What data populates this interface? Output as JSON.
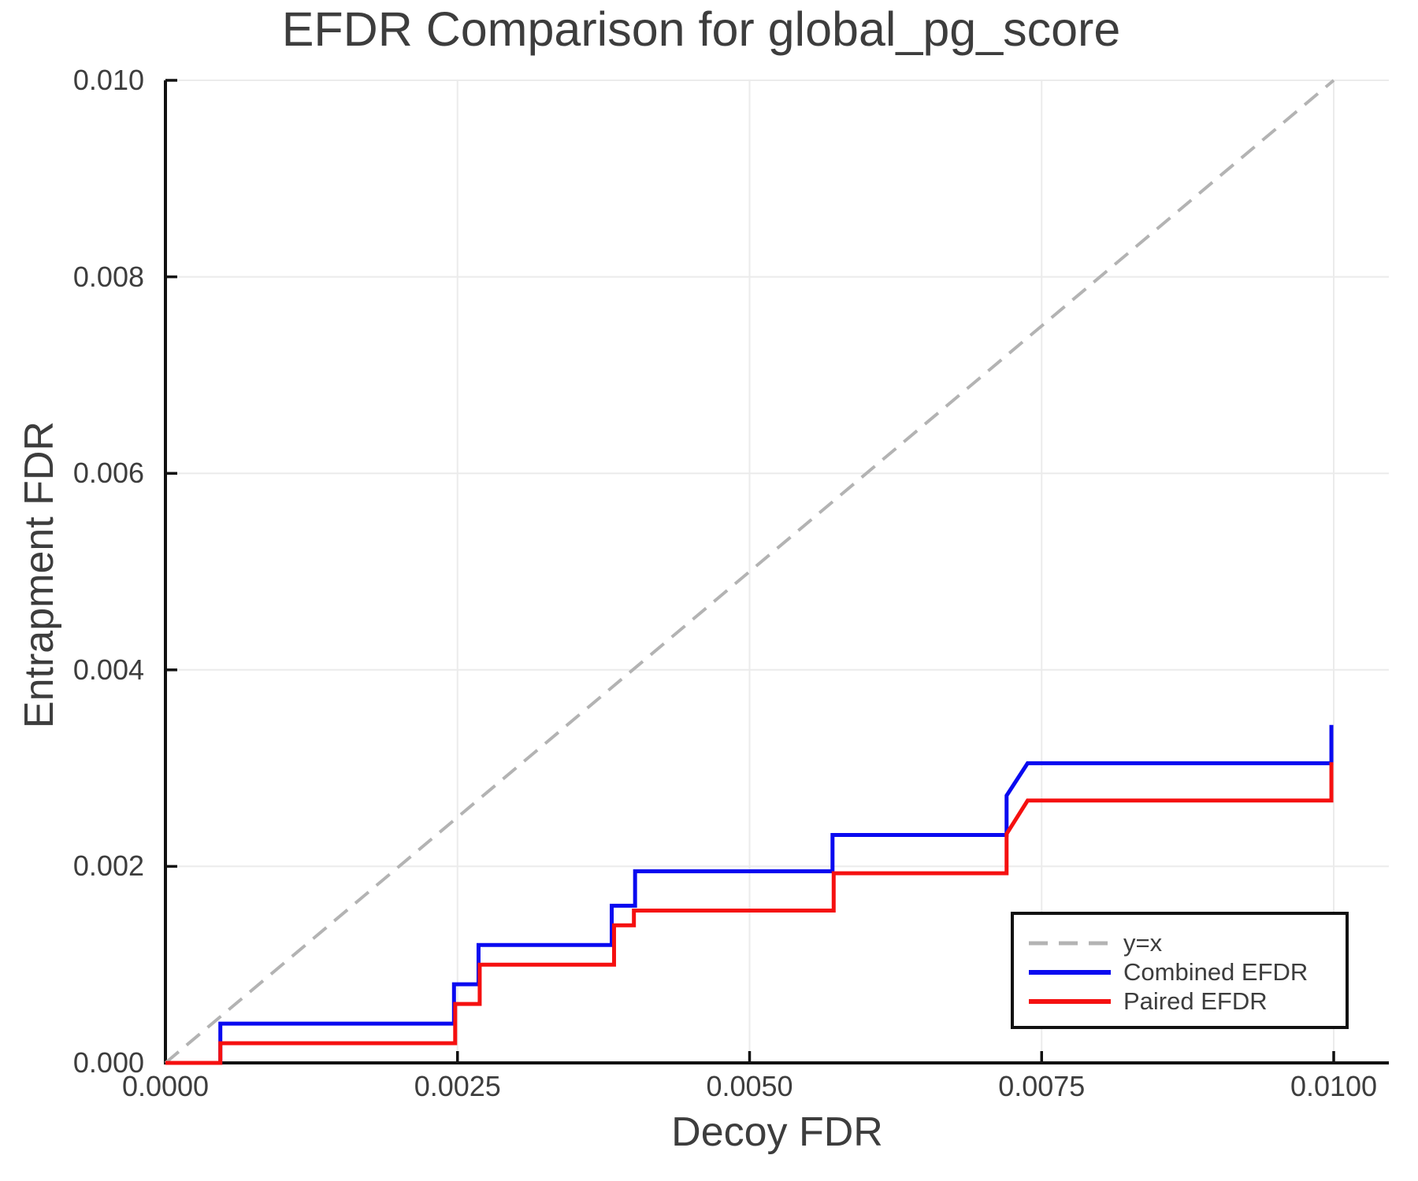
{
  "title": "EFDR Comparison for global_pg_score",
  "colors": {
    "combined_blue": "#0a0af0",
    "paired_red": "#f51010",
    "identity_gray": "#b3b3b3",
    "grid": "#ebebeb",
    "axis": "#111111",
    "text": "#3d3d3d",
    "background": "#ffffff"
  },
  "chart_data": {
    "type": "line",
    "title": "EFDR Comparison for global_pg_score",
    "xlabel": "Decoy FDR",
    "ylabel": "Entrapment FDR",
    "xlim": [
      0,
      0.01047
    ],
    "ylim": [
      0,
      0.01
    ],
    "grid": true,
    "legend_position": "lower right",
    "x_ticks": {
      "values": [
        0,
        0.0025,
        0.005,
        0.0075,
        0.01
      ],
      "labels": [
        "0.0000",
        "0.0025",
        "0.0050",
        "0.0075",
        "0.0100"
      ]
    },
    "y_ticks": {
      "values": [
        0,
        0.002,
        0.004,
        0.006,
        0.008,
        0.01
      ],
      "labels": [
        "0.000",
        "0.002",
        "0.004",
        "0.006",
        "0.008",
        "0.010"
      ]
    },
    "series": [
      {
        "name": "y=x",
        "style": "dashed",
        "color": "#b3b3b3",
        "width": 4,
        "points": [
          [
            0,
            0
          ],
          [
            0.01,
            0.01
          ]
        ]
      },
      {
        "name": "Combined EFDR",
        "style": "solid",
        "color": "#0a0af0",
        "width": 5,
        "points": [
          [
            0,
            0
          ],
          [
            0.00047,
            0
          ],
          [
            0.00047,
            0.0004
          ],
          [
            0.00247,
            0.0004
          ],
          [
            0.00247,
            0.0008
          ],
          [
            0.00268,
            0.0008
          ],
          [
            0.00268,
            0.0012
          ],
          [
            0.00382,
            0.0012
          ],
          [
            0.00382,
            0.0016
          ],
          [
            0.00402,
            0.0016
          ],
          [
            0.00402,
            0.00195
          ],
          [
            0.00571,
            0.00195
          ],
          [
            0.00571,
            0.00232
          ],
          [
            0.0072,
            0.00232
          ],
          [
            0.0072,
            0.00272
          ],
          [
            0.00738,
            0.00305
          ],
          [
            0.00998,
            0.00305
          ],
          [
            0.00998,
            0.00344
          ]
        ]
      },
      {
        "name": "Paired EFDR",
        "style": "solid",
        "color": "#f51010",
        "width": 5,
        "points": [
          [
            0,
            0
          ],
          [
            0.00047,
            0
          ],
          [
            0.00047,
            0.0002
          ],
          [
            0.00248,
            0.0002
          ],
          [
            0.00248,
            0.0006
          ],
          [
            0.00269,
            0.0006
          ],
          [
            0.00269,
            0.001
          ],
          [
            0.00384,
            0.001
          ],
          [
            0.00384,
            0.0014
          ],
          [
            0.00401,
            0.0014
          ],
          [
            0.00401,
            0.00155
          ],
          [
            0.00572,
            0.00155
          ],
          [
            0.00572,
            0.00193
          ],
          [
            0.0072,
            0.00193
          ],
          [
            0.0072,
            0.00233
          ],
          [
            0.00738,
            0.00267
          ],
          [
            0.00998,
            0.00267
          ],
          [
            0.00998,
            0.00306
          ]
        ]
      }
    ]
  }
}
